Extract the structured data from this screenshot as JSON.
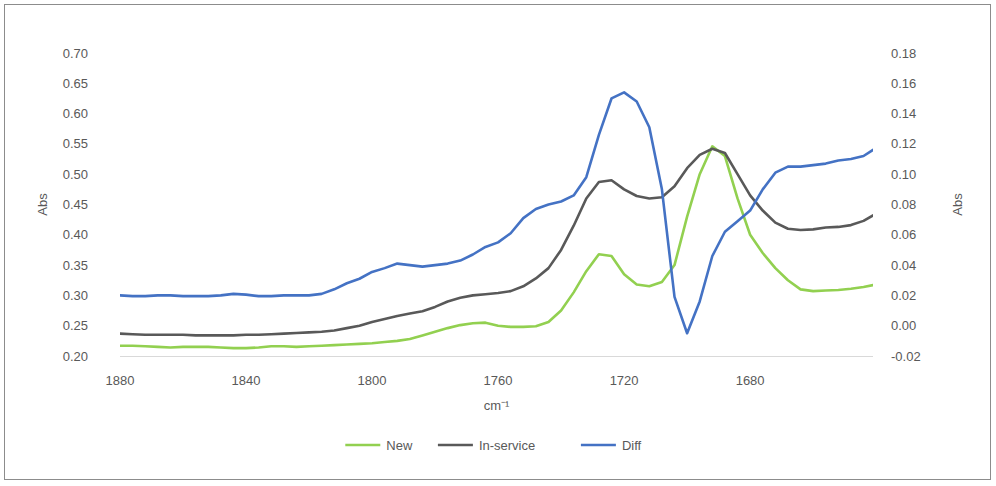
{
  "chart_data": {
    "type": "line",
    "x_label": "cm⁻¹",
    "y_label": "Abs",
    "y2_label": "Abs",
    "x": [
      1880,
      1876,
      1872,
      1868,
      1864,
      1860,
      1856,
      1852,
      1848,
      1844,
      1840,
      1836,
      1832,
      1828,
      1824,
      1820,
      1816,
      1812,
      1808,
      1804,
      1800,
      1796,
      1792,
      1788,
      1784,
      1780,
      1776,
      1772,
      1768,
      1764,
      1760,
      1756,
      1752,
      1748,
      1744,
      1740,
      1736,
      1732,
      1728,
      1724,
      1720,
      1716,
      1712,
      1708,
      1704,
      1700,
      1696,
      1692,
      1688,
      1684,
      1680,
      1676,
      1672,
      1668,
      1664,
      1660,
      1656,
      1652,
      1648,
      1644,
      1641
    ],
    "xlim": [
      1880,
      1641
    ],
    "xticks": [
      1880,
      1840,
      1800,
      1760,
      1720,
      1680
    ],
    "ylim": [
      0.2,
      0.7
    ],
    "yticks": [
      {
        "value": 0.2,
        "label": "0.20"
      },
      0.25,
      {
        "value": 0.3,
        "label": "0.30"
      },
      0.35,
      {
        "value": 0.4,
        "label": "0.40"
      },
      0.45,
      {
        "value": 0.5,
        "label": "0.50"
      },
      0.55,
      {
        "value": 0.6,
        "label": "0.60"
      },
      0.65,
      {
        "value": 0.7,
        "label": "0.70"
      }
    ],
    "y2lim": [
      -0.02,
      0.18
    ],
    "y2ticks": [
      -0.02,
      {
        "value": 0,
        "label": "0.00"
      },
      0.02,
      0.04,
      0.06,
      0.08,
      {
        "value": 0.1,
        "label": "0.10"
      },
      0.12,
      0.14,
      0.16,
      0.18
    ],
    "grid": false,
    "legend": "bottom",
    "series": [
      {
        "name": "New",
        "color": "#92d050",
        "values": [
          0.217,
          0.217,
          0.216,
          0.215,
          0.214,
          0.215,
          0.215,
          0.215,
          0.214,
          0.213,
          0.213,
          0.214,
          0.216,
          0.216,
          0.215,
          0.216,
          0.217,
          0.218,
          0.219,
          0.22,
          0.221,
          0.223,
          0.225,
          0.228,
          0.234,
          0.24,
          0.246,
          0.251,
          0.254,
          0.255,
          0.25,
          0.248,
          0.248,
          0.249,
          0.256,
          0.275,
          0.305,
          0.34,
          0.368,
          0.365,
          0.335,
          0.318,
          0.315,
          0.322,
          0.35,
          0.43,
          0.5,
          0.546,
          0.53,
          0.46,
          0.4,
          0.37,
          0.345,
          0.325,
          0.31,
          0.307,
          0.308,
          0.309,
          0.311,
          0.314,
          0.317
        ]
      },
      {
        "name": "In-service",
        "color": "#595959",
        "values": [
          0.237,
          0.236,
          0.235,
          0.235,
          0.235,
          0.235,
          0.234,
          0.234,
          0.234,
          0.234,
          0.235,
          0.235,
          0.236,
          0.237,
          0.238,
          0.239,
          0.24,
          0.242,
          0.246,
          0.25,
          0.256,
          0.261,
          0.266,
          0.27,
          0.274,
          0.281,
          0.29,
          0.296,
          0.3,
          0.302,
          0.304,
          0.307,
          0.315,
          0.328,
          0.345,
          0.375,
          0.415,
          0.46,
          0.487,
          0.49,
          0.475,
          0.464,
          0.46,
          0.462,
          0.48,
          0.51,
          0.532,
          0.542,
          0.535,
          0.5,
          0.465,
          0.44,
          0.42,
          0.41,
          0.408,
          0.409,
          0.412,
          0.413,
          0.416,
          0.423,
          0.432
        ]
      },
      {
        "name": "Diff",
        "color": "#4472c4",
        "axis": "y2",
        "values": [
          0.02,
          0.0195,
          0.0195,
          0.02,
          0.02,
          0.0195,
          0.0195,
          0.0195,
          0.02,
          0.021,
          0.0205,
          0.0195,
          0.0195,
          0.02,
          0.02,
          0.02,
          0.021,
          0.024,
          0.028,
          0.031,
          0.0355,
          0.038,
          0.041,
          0.04,
          0.039,
          0.04,
          0.041,
          0.043,
          0.047,
          0.052,
          0.055,
          0.061,
          0.071,
          0.077,
          0.08,
          0.082,
          0.086,
          0.098,
          0.126,
          0.15,
          0.154,
          0.148,
          0.131,
          0.09,
          0.019,
          -0.005,
          0.016,
          0.046,
          0.062,
          0.069,
          0.076,
          0.09,
          0.101,
          0.105,
          0.105,
          0.106,
          0.107,
          0.109,
          0.11,
          0.112,
          0.116
        ]
      }
    ]
  }
}
